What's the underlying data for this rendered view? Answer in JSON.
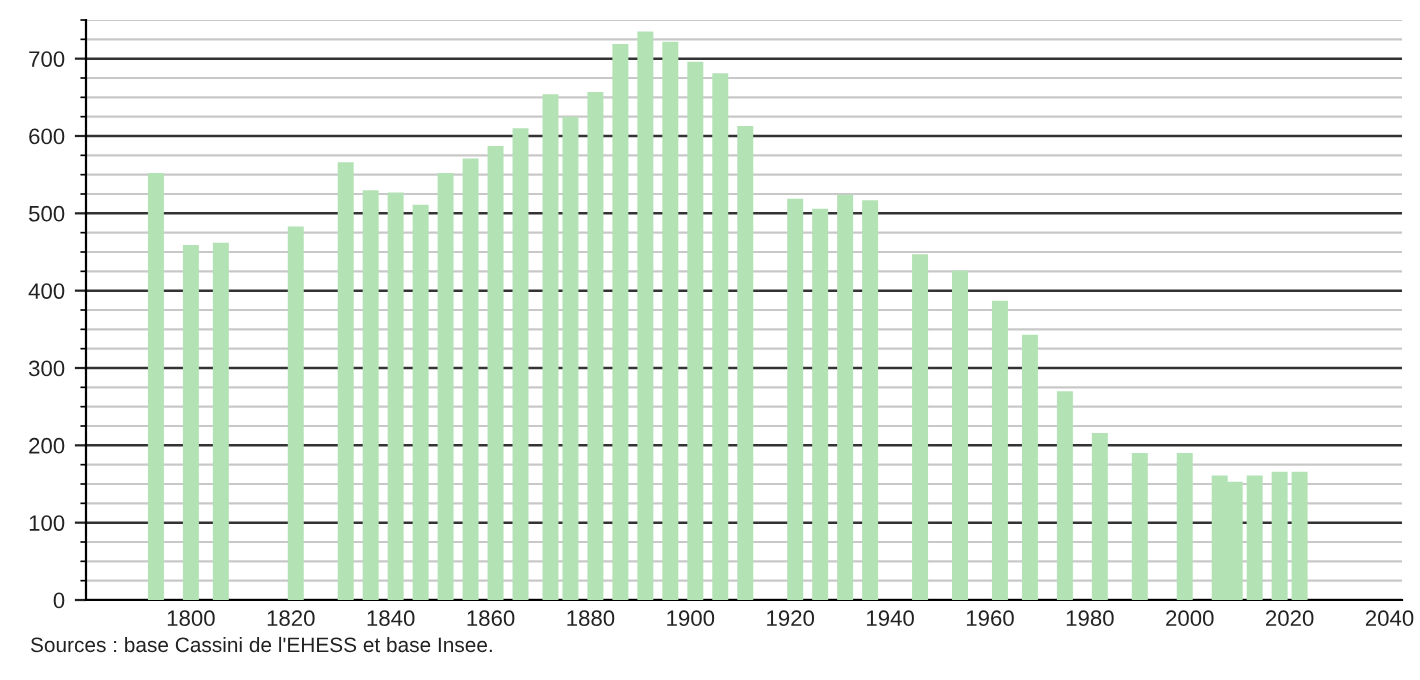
{
  "chart_data": {
    "type": "bar",
    "x": [
      1793,
      1800,
      1806,
      1821,
      1831,
      1836,
      1841,
      1846,
      1851,
      1856,
      1861,
      1866,
      1872,
      1876,
      1881,
      1886,
      1891,
      1896,
      1901,
      1906,
      1911,
      1921,
      1926,
      1931,
      1936,
      1946,
      1954,
      1962,
      1968,
      1975,
      1982,
      1990,
      1999,
      2006,
      2009,
      2013,
      2018,
      2022
    ],
    "values": [
      552,
      459,
      462,
      483,
      566,
      530,
      527,
      511,
      552,
      571,
      587,
      610,
      654,
      625,
      657,
      719,
      735,
      722,
      696,
      681,
      613,
      519,
      506,
      524,
      517,
      447,
      426,
      387,
      343,
      270,
      216,
      190,
      190,
      161,
      153,
      161,
      166,
      166
    ],
    "color": "#b3e3b5",
    "xlim": [
      1779,
      2042.5
    ],
    "xticks": [
      1800,
      1820,
      1840,
      1860,
      1880,
      1900,
      1920,
      1940,
      1960,
      1980,
      2000,
      2020,
      2040
    ],
    "ylim": [
      0,
      750
    ],
    "yticks": [
      0,
      100,
      200,
      300,
      400,
      500,
      600,
      700
    ],
    "grid": "y",
    "annotations": [
      "Sources : base Cassini de l'EHESS et base Insee."
    ]
  }
}
